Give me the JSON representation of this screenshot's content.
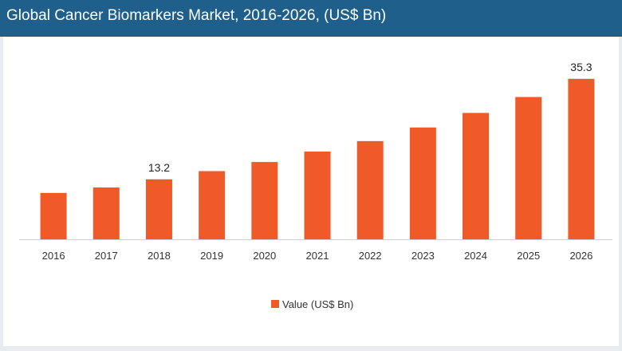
{
  "header": {
    "title": "Global Cancer Biomarkers Market, 2016-2026, (US$ Bn)"
  },
  "chart_data": {
    "type": "bar",
    "title": "Global Cancer Biomarkers Market, 2016-2026, (US$ Bn)",
    "categories": [
      "2016",
      "2017",
      "2018",
      "2019",
      "2020",
      "2021",
      "2022",
      "2023",
      "2024",
      "2025",
      "2026"
    ],
    "series": [
      {
        "name": "Value (US$ Bn)",
        "values": [
          10.2,
          11.4,
          13.2,
          15.0,
          17.0,
          19.3,
          21.6,
          24.6,
          27.8,
          31.3,
          35.3
        ],
        "color": "#f05a28"
      }
    ],
    "data_labels": [
      {
        "category": "2018",
        "text": "13.2"
      },
      {
        "category": "2026",
        "text": "35.3"
      }
    ],
    "xlabel": "",
    "ylabel": "",
    "ylim": [
      0,
      40
    ],
    "grid": false,
    "legend": {
      "position": "bottom",
      "entries": [
        "Value (US$ Bn)"
      ]
    }
  }
}
